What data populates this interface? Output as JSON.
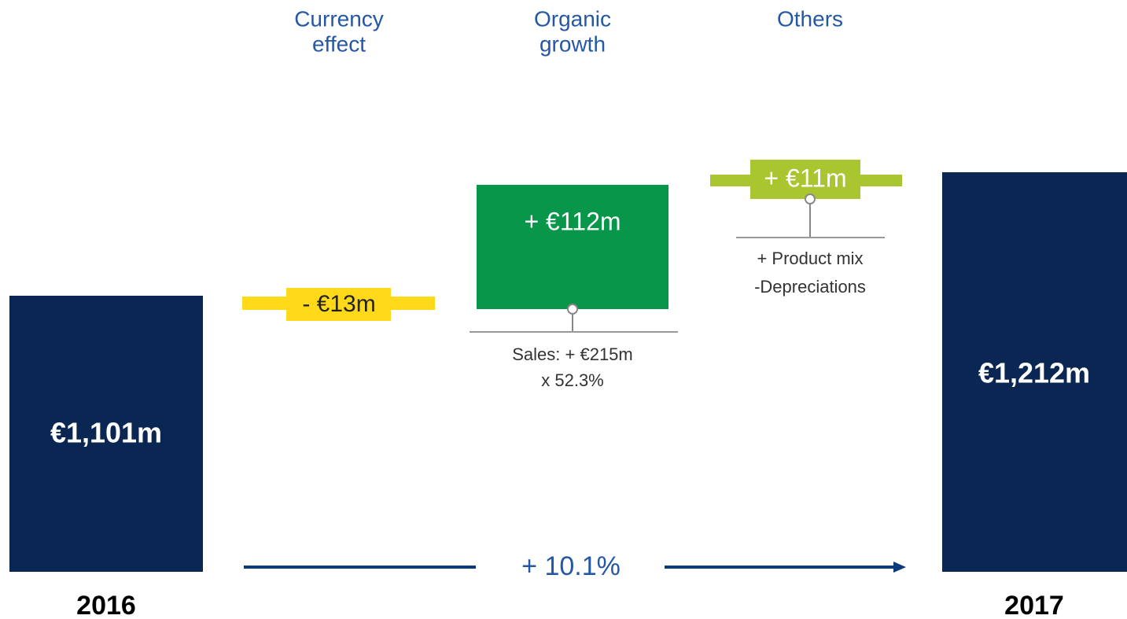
{
  "columns": [
    {
      "lines": [
        "Currency",
        "effect"
      ]
    },
    {
      "lines": [
        "Organic",
        "growth"
      ]
    },
    {
      "lines": [
        "Others"
      ]
    }
  ],
  "start": {
    "value_label": "€1,101m",
    "year": "2016"
  },
  "end": {
    "value_label": "€1,212m",
    "year": "2017"
  },
  "steps": [
    {
      "label": "- €13m"
    },
    {
      "label": "+ €112m",
      "notes": [
        "Sales: + €215m",
        "x 52.3%"
      ]
    },
    {
      "label": "+ €11m",
      "notes": [
        "+ Product mix",
        "-Depreciations"
      ]
    }
  ],
  "growth": "+ 10.1%"
}
